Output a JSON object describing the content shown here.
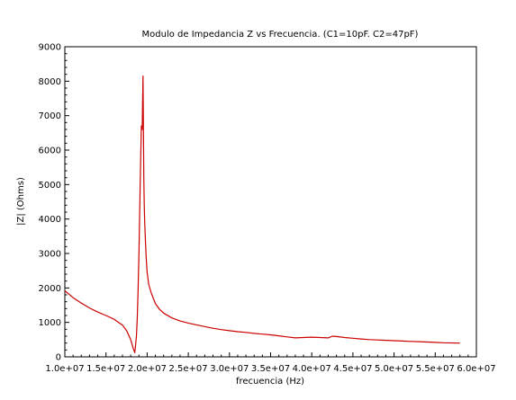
{
  "chart_data": {
    "type": "line",
    "title": "Modulo de Impedancia Z vs Frecuencia.  (C1=10pF. C2=47pF)",
    "xlabel": "frecuencia (Hz)",
    "ylabel": "|Z| (Ohms)",
    "xlim": [
      10000000,
      60000000
    ],
    "ylim": [
      0,
      9000
    ],
    "grid": false,
    "xticks": [
      10000000,
      15000000,
      20000000,
      25000000,
      30000000,
      35000000,
      40000000,
      45000000,
      50000000,
      55000000,
      60000000
    ],
    "xtick_labels": [
      "1.0e+07",
      "1.5e+07",
      "2.0e+07",
      "2.5e+07",
      "3.0e+07",
      "3.5e+07",
      "4.0e+07",
      "4.5e+07",
      "5.0e+07",
      "5.5e+07",
      "6.0e+07"
    ],
    "yticks": [
      0,
      1000,
      2000,
      3000,
      4000,
      5000,
      6000,
      7000,
      8000,
      9000
    ],
    "ytick_labels": [
      "0",
      "1000",
      "2000",
      "3000",
      "4000",
      "5000",
      "6000",
      "7000",
      "8000",
      "9000"
    ],
    "series": [
      {
        "color": "#cc0000",
        "x": [
          10000000,
          11000000,
          12000000,
          13000000,
          14000000,
          15000000,
          16000000,
          17000000,
          17500000,
          18000000,
          18300000,
          18500000,
          18700000,
          18800000,
          18900000,
          19000000,
          19100000,
          19200000,
          19300000,
          19400000,
          19500000,
          19550000,
          19600000,
          19650000,
          19700000,
          19800000,
          19900000,
          20000000,
          20200000,
          20500000,
          21000000,
          21500000,
          22000000,
          23000000,
          24000000,
          25000000,
          26000000,
          27000000,
          28000000,
          29000000,
          30000000,
          31000000,
          32000000,
          33000000,
          34000000,
          35000000,
          36000000,
          37000000,
          38000000,
          39000000,
          40000000,
          41000000,
          42000000,
          42500000,
          43000000,
          44000000,
          45000000,
          46000000,
          47000000,
          48000000,
          49000000,
          50000000,
          51000000,
          52000000,
          53000000,
          54000000,
          55000000,
          56000000,
          57000000,
          58000000
        ],
        "y": [
          1920,
          1720,
          1560,
          1420,
          1300,
          1200,
          1090,
          920,
          760,
          500,
          250,
          120,
          600,
          1100,
          1900,
          3000,
          4300,
          5600,
          6700,
          6600,
          8150,
          6500,
          5200,
          4400,
          3900,
          3300,
          2800,
          2450,
          2100,
          1850,
          1550,
          1380,
          1270,
          1130,
          1040,
          980,
          930,
          880,
          830,
          790,
          760,
          730,
          710,
          680,
          660,
          640,
          610,
          580,
          550,
          560,
          570,
          560,
          550,
          600,
          590,
          560,
          540,
          520,
          500,
          490,
          480,
          470,
          460,
          450,
          440,
          430,
          420,
          410,
          405,
          400
        ]
      }
    ]
  }
}
